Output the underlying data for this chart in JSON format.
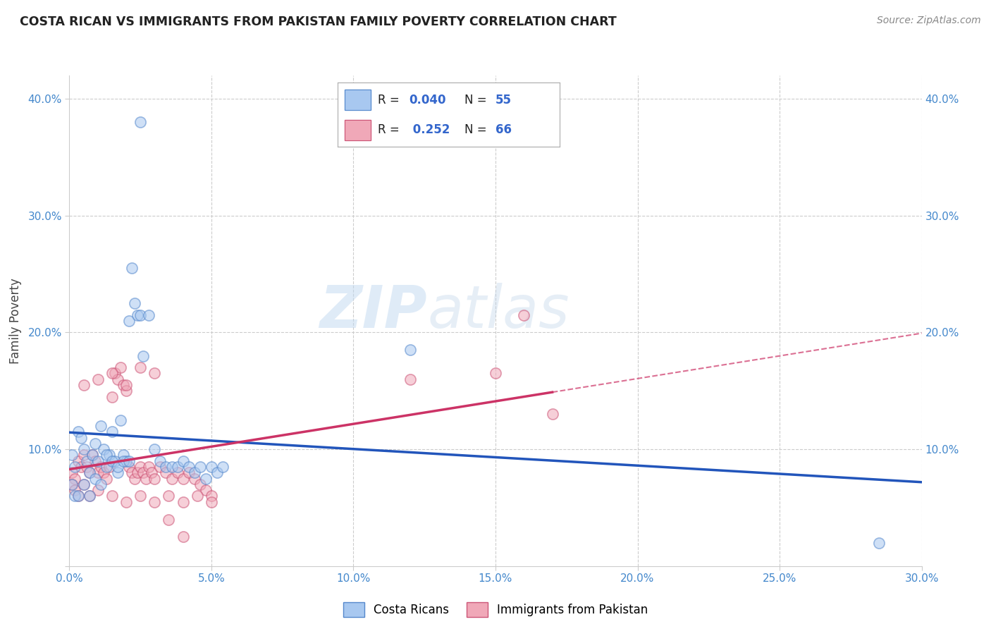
{
  "title": "COSTA RICAN VS IMMIGRANTS FROM PAKISTAN FAMILY POVERTY CORRELATION CHART",
  "source": "Source: ZipAtlas.com",
  "ylabel_label": "Family Poverty",
  "xlim": [
    0.0,
    0.3
  ],
  "ylim": [
    0.0,
    0.42
  ],
  "series1_color": "#a8c8f0",
  "series2_color": "#f0a8b8",
  "series1_edge": "#5588cc",
  "series2_edge": "#cc5577",
  "line1_color": "#2255bb",
  "line2_color": "#cc3366",
  "R1": 0.04,
  "N1": 55,
  "R2": 0.252,
  "N2": 66,
  "legend1_label": "Costa Ricans",
  "legend2_label": "Immigrants from Pakistan",
  "watermark_zip": "ZIP",
  "watermark_atlas": "atlas",
  "background_color": "#ffffff",
  "grid_color": "#cccccc",
  "scatter_size": 120,
  "scatter_alpha": 0.55,
  "costa_rican_x": [
    0.001,
    0.002,
    0.003,
    0.004,
    0.005,
    0.006,
    0.007,
    0.008,
    0.009,
    0.01,
    0.011,
    0.012,
    0.013,
    0.014,
    0.015,
    0.016,
    0.017,
    0.018,
    0.019,
    0.02,
    0.021,
    0.022,
    0.023,
    0.024,
    0.025,
    0.026,
    0.028,
    0.03,
    0.032,
    0.034,
    0.036,
    0.038,
    0.04,
    0.042,
    0.044,
    0.046,
    0.048,
    0.05,
    0.052,
    0.054,
    0.001,
    0.002,
    0.003,
    0.005,
    0.007,
    0.009,
    0.011,
    0.013,
    0.015,
    0.017,
    0.019,
    0.021,
    0.025,
    0.12,
    0.285
  ],
  "costa_rican_y": [
    0.095,
    0.085,
    0.115,
    0.11,
    0.1,
    0.09,
    0.08,
    0.095,
    0.105,
    0.09,
    0.12,
    0.1,
    0.085,
    0.095,
    0.115,
    0.09,
    0.08,
    0.125,
    0.095,
    0.09,
    0.21,
    0.255,
    0.225,
    0.215,
    0.215,
    0.18,
    0.215,
    0.1,
    0.09,
    0.085,
    0.085,
    0.085,
    0.09,
    0.085,
    0.08,
    0.085,
    0.075,
    0.085,
    0.08,
    0.085,
    0.07,
    0.06,
    0.06,
    0.07,
    0.06,
    0.075,
    0.07,
    0.095,
    0.09,
    0.085,
    0.09,
    0.09,
    0.38,
    0.185,
    0.02
  ],
  "pakistan_x": [
    0.001,
    0.002,
    0.003,
    0.004,
    0.005,
    0.006,
    0.007,
    0.008,
    0.009,
    0.01,
    0.011,
    0.012,
    0.013,
    0.014,
    0.015,
    0.016,
    0.017,
    0.018,
    0.019,
    0.02,
    0.021,
    0.022,
    0.023,
    0.024,
    0.025,
    0.026,
    0.027,
    0.028,
    0.029,
    0.03,
    0.032,
    0.034,
    0.036,
    0.038,
    0.04,
    0.042,
    0.044,
    0.046,
    0.048,
    0.05,
    0.001,
    0.002,
    0.003,
    0.005,
    0.007,
    0.01,
    0.015,
    0.02,
    0.025,
    0.03,
    0.035,
    0.04,
    0.045,
    0.05,
    0.12,
    0.15,
    0.16,
    0.17,
    0.025,
    0.03,
    0.005,
    0.01,
    0.015,
    0.02,
    0.035,
    0.04
  ],
  "pakistan_y": [
    0.08,
    0.075,
    0.09,
    0.085,
    0.095,
    0.085,
    0.08,
    0.095,
    0.09,
    0.08,
    0.085,
    0.08,
    0.075,
    0.085,
    0.145,
    0.165,
    0.16,
    0.17,
    0.155,
    0.15,
    0.085,
    0.08,
    0.075,
    0.08,
    0.085,
    0.08,
    0.075,
    0.085,
    0.08,
    0.075,
    0.085,
    0.08,
    0.075,
    0.08,
    0.075,
    0.08,
    0.075,
    0.07,
    0.065,
    0.06,
    0.07,
    0.065,
    0.06,
    0.07,
    0.06,
    0.065,
    0.06,
    0.055,
    0.06,
    0.055,
    0.06,
    0.055,
    0.06,
    0.055,
    0.16,
    0.165,
    0.215,
    0.13,
    0.17,
    0.165,
    0.155,
    0.16,
    0.165,
    0.155,
    0.04,
    0.025
  ]
}
